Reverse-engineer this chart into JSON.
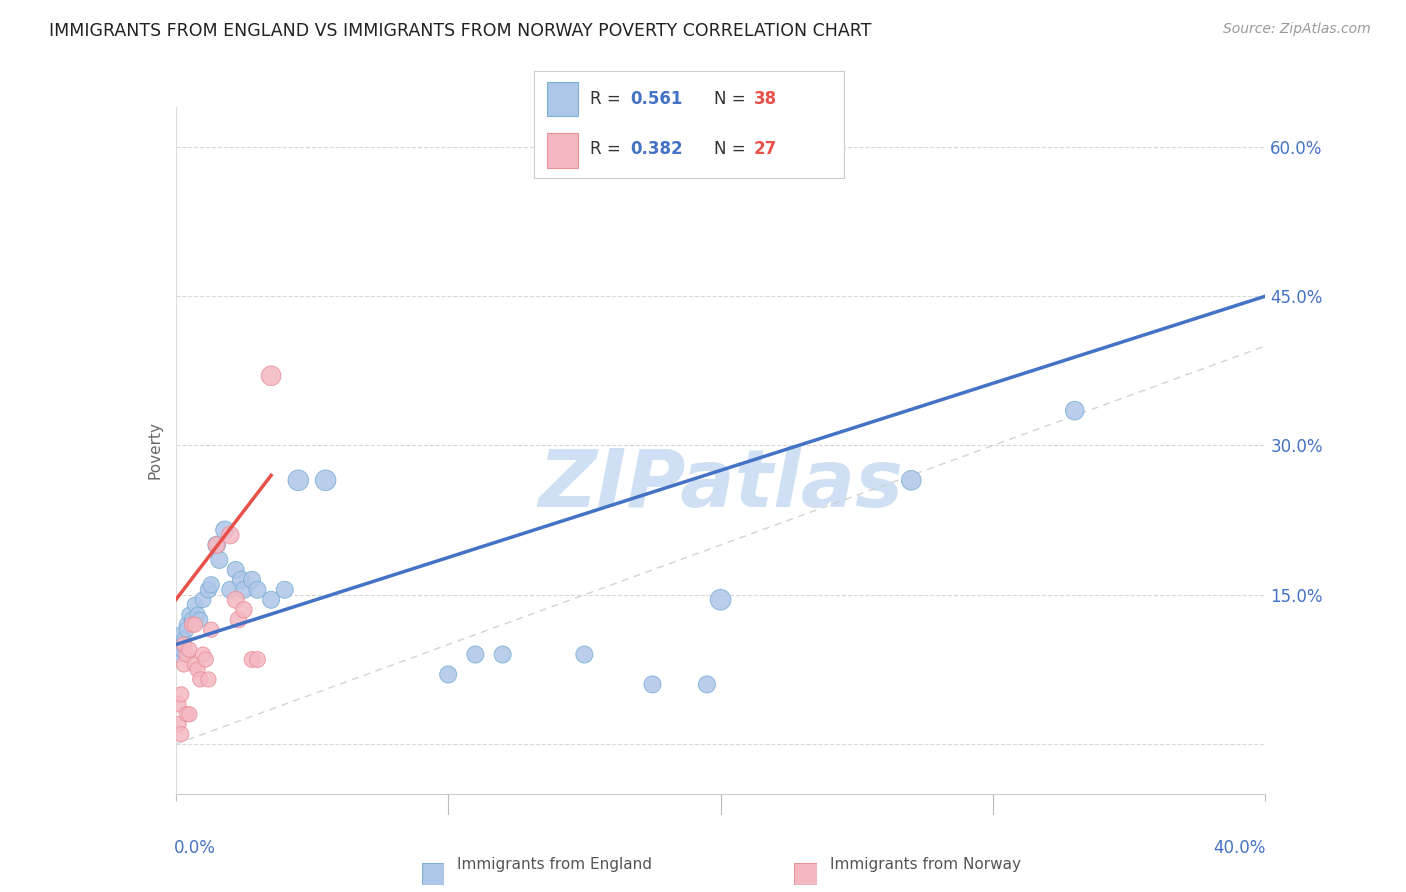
{
  "title": "IMMIGRANTS FROM ENGLAND VS IMMIGRANTS FROM NORWAY POVERTY CORRELATION CHART",
  "source": "Source: ZipAtlas.com",
  "ylabel": "Poverty",
  "x_min": 0.0,
  "x_max": 0.4,
  "y_min": -0.05,
  "y_max": 0.64,
  "y_ticks": [
    0.0,
    0.15,
    0.3,
    0.45,
    0.6
  ],
  "y_tick_labels_right": [
    "",
    "15.0%",
    "30.0%",
    "45.0%",
    "60.0%"
  ],
  "r_england": "0.561",
  "n_england": "38",
  "r_norway": "0.382",
  "n_norway": "27",
  "england_scatter": [
    [
      0.001,
      0.1
    ],
    [
      0.001,
      0.09
    ],
    [
      0.002,
      0.11
    ],
    [
      0.002,
      0.095
    ],
    [
      0.003,
      0.105
    ],
    [
      0.003,
      0.1
    ],
    [
      0.004,
      0.12
    ],
    [
      0.004,
      0.115
    ],
    [
      0.005,
      0.13
    ],
    [
      0.006,
      0.125
    ],
    [
      0.007,
      0.14
    ],
    [
      0.008,
      0.13
    ],
    [
      0.009,
      0.125
    ],
    [
      0.01,
      0.145
    ],
    [
      0.012,
      0.155
    ],
    [
      0.013,
      0.16
    ],
    [
      0.015,
      0.2
    ],
    [
      0.016,
      0.185
    ],
    [
      0.018,
      0.215
    ],
    [
      0.02,
      0.155
    ],
    [
      0.022,
      0.175
    ],
    [
      0.024,
      0.165
    ],
    [
      0.025,
      0.155
    ],
    [
      0.028,
      0.165
    ],
    [
      0.03,
      0.155
    ],
    [
      0.035,
      0.145
    ],
    [
      0.04,
      0.155
    ],
    [
      0.045,
      0.265
    ],
    [
      0.055,
      0.265
    ],
    [
      0.1,
      0.07
    ],
    [
      0.11,
      0.09
    ],
    [
      0.12,
      0.09
    ],
    [
      0.15,
      0.09
    ],
    [
      0.175,
      0.06
    ],
    [
      0.195,
      0.06
    ],
    [
      0.2,
      0.145
    ],
    [
      0.27,
      0.265
    ],
    [
      0.33,
      0.335
    ]
  ],
  "england_sizes": [
    150,
    120,
    130,
    120,
    120,
    120,
    120,
    120,
    120,
    120,
    120,
    120,
    120,
    130,
    140,
    140,
    160,
    150,
    170,
    150,
    150,
    160,
    150,
    150,
    150,
    150,
    150,
    220,
    220,
    150,
    150,
    150,
    150,
    150,
    150,
    220,
    200,
    180
  ],
  "norway_scatter": [
    [
      0.001,
      0.02
    ],
    [
      0.001,
      0.04
    ],
    [
      0.002,
      0.01
    ],
    [
      0.002,
      0.05
    ],
    [
      0.003,
      0.1
    ],
    [
      0.003,
      0.08
    ],
    [
      0.004,
      0.03
    ],
    [
      0.004,
      0.09
    ],
    [
      0.005,
      0.095
    ],
    [
      0.005,
      0.03
    ],
    [
      0.006,
      0.12
    ],
    [
      0.007,
      0.12
    ],
    [
      0.007,
      0.08
    ],
    [
      0.008,
      0.075
    ],
    [
      0.009,
      0.065
    ],
    [
      0.01,
      0.09
    ],
    [
      0.011,
      0.085
    ],
    [
      0.012,
      0.065
    ],
    [
      0.013,
      0.115
    ],
    [
      0.015,
      0.2
    ],
    [
      0.02,
      0.21
    ],
    [
      0.022,
      0.145
    ],
    [
      0.023,
      0.125
    ],
    [
      0.025,
      0.135
    ],
    [
      0.028,
      0.085
    ],
    [
      0.03,
      0.085
    ],
    [
      0.035,
      0.37
    ]
  ],
  "norway_sizes": [
    120,
    120,
    120,
    120,
    120,
    120,
    120,
    120,
    120,
    120,
    120,
    120,
    120,
    120,
    120,
    120,
    120,
    120,
    120,
    140,
    160,
    150,
    140,
    140,
    130,
    130,
    200
  ],
  "england_color": "#aec6e8",
  "england_edge_color": "#7bafd4",
  "norway_color": "#f4b8c1",
  "norway_edge_color": "#e8909a",
  "england_line_color": "#4472c4",
  "norway_line_color": "#e8504a",
  "diag_line_color": "#c8c8c8",
  "watermark": "ZIPatlas",
  "watermark_color": "#d0e0f4",
  "england_line_x": [
    0.0,
    0.4
  ],
  "england_line_y": [
    0.1,
    0.45
  ],
  "norway_line_x": [
    0.0,
    0.035
  ],
  "norway_line_y": [
    0.145,
    0.27
  ]
}
